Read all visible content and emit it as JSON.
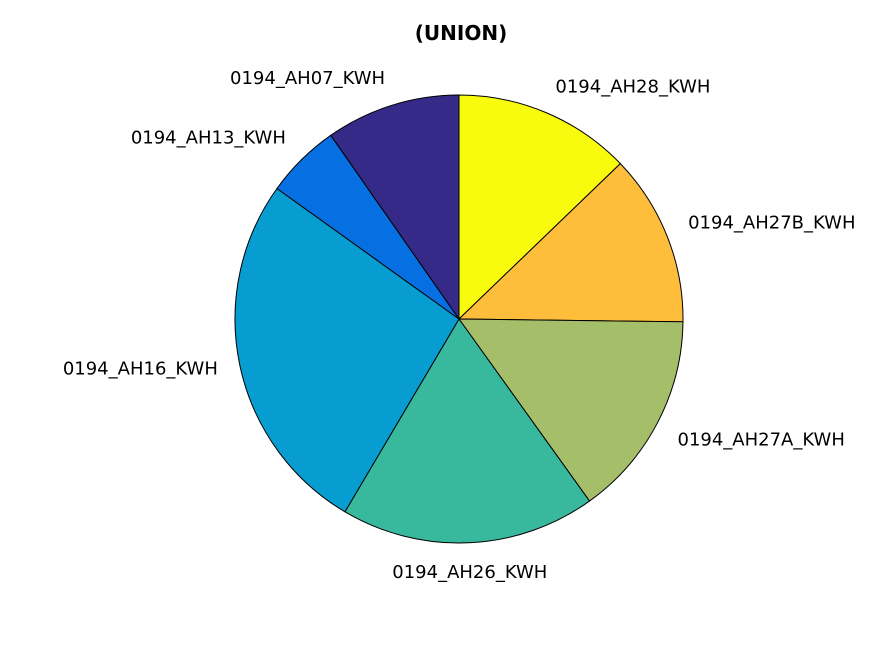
{
  "chart_data": {
    "type": "pie",
    "title": "(UNION)",
    "start_angle_deg": 90,
    "direction": "clockwise",
    "labels": [
      "0194_AH28_KWH",
      "0194_AH27B_KWH",
      "0194_AH27A_KWH",
      "0194_AH26_KWH",
      "0194_AH16_KWH",
      "0194_AH13_KWH",
      "0194_AH07_KWH"
    ],
    "values": [
      12.8,
      12.4,
      14.9,
      18.4,
      26.4,
      5.4,
      9.7
    ],
    "colors": [
      "#F9FB0E",
      "#FEBE3C",
      "#A5BE6A",
      "#38B99E",
      "#079DD0",
      "#0670E2",
      "#352A87"
    ]
  }
}
